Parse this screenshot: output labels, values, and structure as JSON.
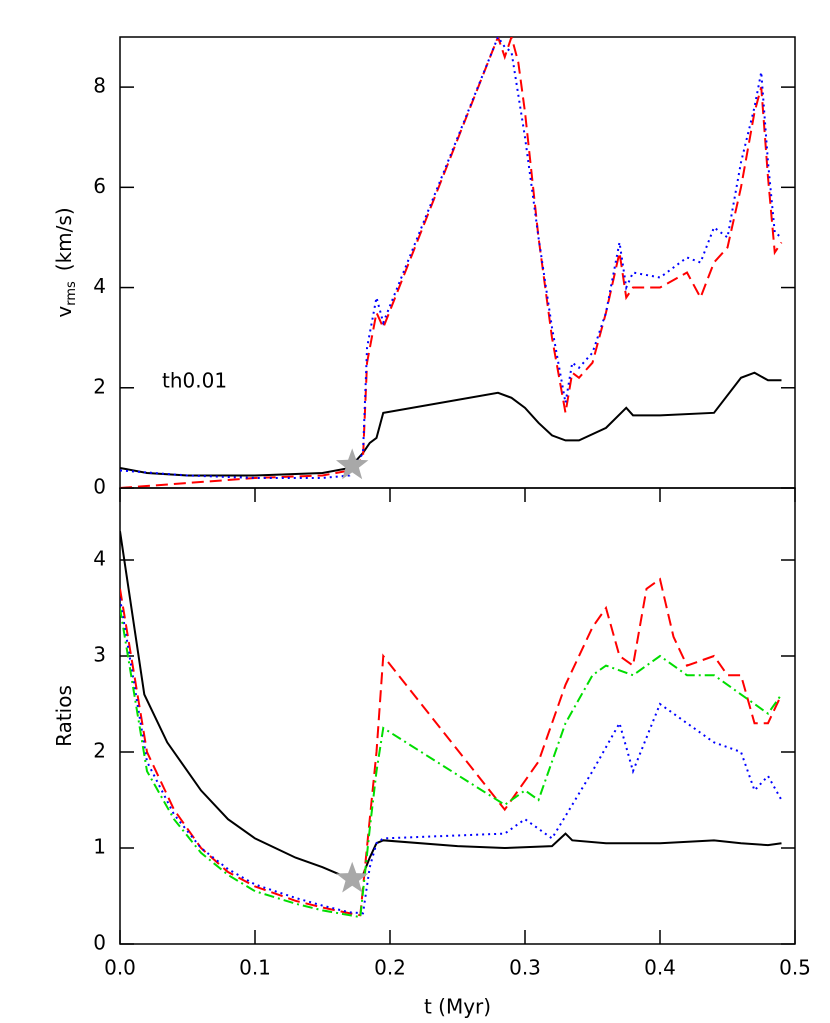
{
  "chart_data": [
    {
      "type": "line",
      "ylabel": [
        "v",
        "rms",
        "(km/s)"
      ],
      "annotation": "th0.01",
      "xlim": [
        0,
        0.5
      ],
      "ylim": [
        0,
        9
      ],
      "yticks": [
        0,
        2,
        4,
        6,
        8
      ],
      "markers": [
        {
          "x": 0.172,
          "y": 0.45,
          "color": "#a8a8a8"
        }
      ],
      "series": [
        {
          "color": "#000000",
          "linestyle": "solid",
          "x": [
            0,
            0.02,
            0.05,
            0.1,
            0.15,
            0.17,
            0.18,
            0.185,
            0.19,
            0.195,
            0.28,
            0.29,
            0.3,
            0.31,
            0.32,
            0.33,
            0.34,
            0.36,
            0.375,
            0.38,
            0.4,
            0.44,
            0.46,
            0.47,
            0.48,
            0.49
          ],
          "values": [
            0.4,
            0.3,
            0.25,
            0.25,
            0.3,
            0.4,
            0.7,
            0.9,
            1.0,
            1.5,
            1.9,
            1.8,
            1.6,
            1.3,
            1.05,
            0.95,
            0.95,
            1.2,
            1.6,
            1.45,
            1.45,
            1.5,
            2.2,
            2.3,
            2.15,
            2.15
          ]
        },
        {
          "color": "#ff0000",
          "linestyle": "dashed",
          "x": [
            0,
            0.05,
            0.1,
            0.15,
            0.17,
            0.18,
            0.183,
            0.19,
            0.195,
            0.28,
            0.285,
            0.29,
            0.295,
            0.3,
            0.31,
            0.32,
            0.33,
            0.335,
            0.34,
            0.35,
            0.36,
            0.37,
            0.375,
            0.38,
            0.4,
            0.42,
            0.43,
            0.44,
            0.45,
            0.46,
            0.47,
            0.475,
            0.48,
            0.485,
            0.49
          ],
          "values": [
            0,
            0.1,
            0.2,
            0.25,
            0.35,
            0.6,
            2.5,
            3.5,
            3.2,
            9.0,
            8.6,
            9.0,
            8.5,
            7.5,
            5.0,
            3.0,
            1.5,
            2.3,
            2.2,
            2.5,
            3.5,
            4.7,
            3.8,
            4.0,
            4.0,
            4.3,
            3.8,
            4.5,
            4.8,
            6.0,
            7.5,
            8.0,
            6.2,
            4.7,
            4.9
          ]
        },
        {
          "color": "#0000ff",
          "linestyle": "dotted",
          "x": [
            0,
            0.05,
            0.1,
            0.15,
            0.17,
            0.18,
            0.183,
            0.19,
            0.195,
            0.28,
            0.285,
            0.29,
            0.3,
            0.31,
            0.32,
            0.33,
            0.335,
            0.34,
            0.35,
            0.36,
            0.37,
            0.375,
            0.38,
            0.4,
            0.42,
            0.43,
            0.44,
            0.45,
            0.46,
            0.47,
            0.475,
            0.48,
            0.485,
            0.49
          ],
          "values": [
            0.35,
            0.25,
            0.2,
            0.2,
            0.25,
            0.7,
            2.8,
            3.8,
            3.3,
            9.0,
            8.8,
            8.7,
            7.0,
            5.0,
            3.2,
            1.7,
            2.5,
            2.4,
            2.7,
            3.5,
            4.9,
            4.0,
            4.3,
            4.2,
            4.6,
            4.5,
            5.2,
            5.0,
            6.5,
            7.6,
            8.3,
            6.5,
            5.1,
            5.0
          ]
        }
      ]
    },
    {
      "type": "line",
      "ylabel": [
        "Ratios"
      ],
      "xlabel": "t (Myr)",
      "xlim": [
        0,
        0.5
      ],
      "ylim": [
        0,
        4.75
      ],
      "yticks": [
        0,
        1,
        2,
        3,
        4
      ],
      "xticks": [
        {
          "value": 0,
          "label": "0.0"
        },
        0.1,
        0.2,
        0.3,
        0.4,
        0.5
      ],
      "markers": [
        {
          "x": 0.172,
          "y": 0.68,
          "color": "#a8a8a8"
        }
      ],
      "series": [
        {
          "color": "#000000",
          "linestyle": "solid",
          "x": [
            0,
            0.018,
            0.035,
            0.06,
            0.08,
            0.1,
            0.13,
            0.15,
            0.17,
            0.18,
            0.185,
            0.19,
            0.195,
            0.25,
            0.285,
            0.32,
            0.33,
            0.335,
            0.36,
            0.4,
            0.44,
            0.46,
            0.48,
            0.49
          ],
          "values": [
            4.3,
            2.6,
            2.1,
            1.6,
            1.3,
            1.1,
            0.9,
            0.8,
            0.68,
            0.72,
            0.9,
            1.05,
            1.08,
            1.02,
            1.0,
            1.02,
            1.15,
            1.08,
            1.05,
            1.05,
            1.08,
            1.05,
            1.03,
            1.05
          ]
        },
        {
          "color": "#ff0000",
          "linestyle": "dashed",
          "x": [
            0,
            0.02,
            0.04,
            0.06,
            0.08,
            0.1,
            0.13,
            0.15,
            0.17,
            0.178,
            0.185,
            0.19,
            0.195,
            0.285,
            0.29,
            0.31,
            0.33,
            0.35,
            0.36,
            0.37,
            0.38,
            0.39,
            0.4,
            0.41,
            0.42,
            0.44,
            0.45,
            0.46,
            0.47,
            0.48,
            0.49
          ],
          "values": [
            3.7,
            2.0,
            1.4,
            1.0,
            0.75,
            0.6,
            0.45,
            0.38,
            0.32,
            0.3,
            1.3,
            2.0,
            3.0,
            1.4,
            1.5,
            1.9,
            2.7,
            3.3,
            3.5,
            3.0,
            2.9,
            3.7,
            3.8,
            3.2,
            2.9,
            3.0,
            2.8,
            2.8,
            2.3,
            2.3,
            2.6
          ]
        },
        {
          "color": "#0000ff",
          "linestyle": "dotted",
          "x": [
            0,
            0.02,
            0.04,
            0.06,
            0.08,
            0.1,
            0.13,
            0.15,
            0.17,
            0.18,
            0.185,
            0.19,
            0.195,
            0.285,
            0.29,
            0.3,
            0.31,
            0.32,
            0.35,
            0.37,
            0.38,
            0.4,
            0.42,
            0.44,
            0.46,
            0.47,
            0.48,
            0.49
          ],
          "values": [
            3.6,
            1.9,
            1.35,
            1.0,
            0.78,
            0.62,
            0.48,
            0.4,
            0.33,
            0.32,
            0.8,
            1.05,
            1.1,
            1.15,
            1.2,
            1.3,
            1.2,
            1.1,
            1.8,
            2.3,
            1.8,
            2.5,
            2.3,
            2.1,
            2.0,
            1.6,
            1.75,
            1.5
          ]
        },
        {
          "color": "#00dd00",
          "linestyle": "dashdot",
          "x": [
            0,
            0.02,
            0.04,
            0.06,
            0.08,
            0.1,
            0.13,
            0.15,
            0.17,
            0.178,
            0.185,
            0.19,
            0.195,
            0.285,
            0.3,
            0.31,
            0.33,
            0.35,
            0.36,
            0.38,
            0.4,
            0.42,
            0.44,
            0.46,
            0.48,
            0.49
          ],
          "values": [
            3.5,
            1.8,
            1.3,
            0.95,
            0.72,
            0.55,
            0.42,
            0.35,
            0.3,
            0.28,
            1.2,
            1.8,
            2.25,
            1.45,
            1.6,
            1.5,
            2.3,
            2.8,
            2.9,
            2.8,
            3.0,
            2.8,
            2.8,
            2.6,
            2.4,
            2.6
          ]
        }
      ]
    }
  ]
}
